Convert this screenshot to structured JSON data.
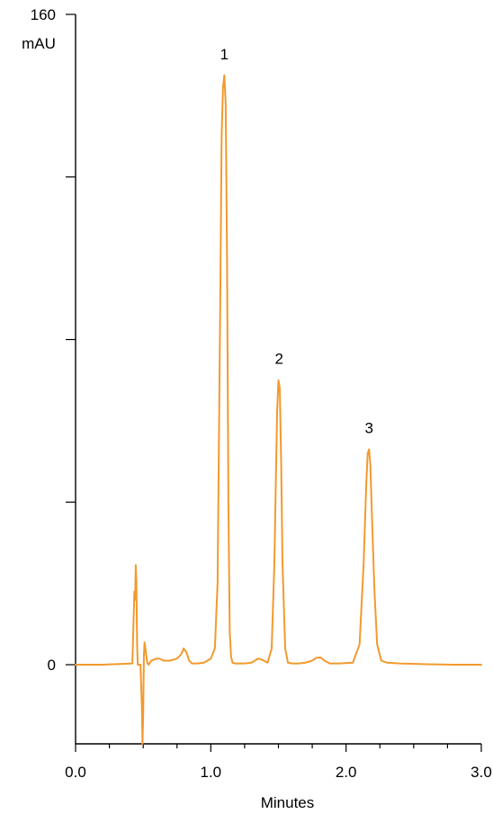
{
  "chart_data": {
    "type": "line",
    "title": "",
    "xlabel": "Minutes",
    "ylabel": "mAU",
    "xlim": [
      0.0,
      3.0
    ],
    "ylim": [
      -19.5,
      160
    ],
    "x_tick_labels": [
      {
        "value": 0.0,
        "label": "0.0"
      },
      {
        "value": 1.0,
        "label": "1.0"
      },
      {
        "value": 2.0,
        "label": "2.0"
      },
      {
        "value": 3.0,
        "label": "3.0"
      }
    ],
    "x_minor_ticks": [
      0.25,
      0.5,
      0.75,
      1.25,
      1.5,
      1.75,
      2.25,
      2.5,
      2.75
    ],
    "y_tick_labels": [
      {
        "value": 160,
        "label": "160"
      },
      {
        "value": 0,
        "label": "0"
      }
    ],
    "y_minor_ticks": [
      40,
      80,
      120
    ],
    "grid": false,
    "color": "#F29A2E",
    "series": [
      {
        "x": [
          0.0,
          0.2,
          0.42,
          0.435,
          0.44,
          0.445,
          0.45,
          0.455,
          0.46,
          0.47,
          0.48,
          0.49,
          0.495,
          0.5,
          0.505,
          0.51,
          0.52,
          0.53,
          0.54,
          0.56,
          0.6,
          0.62,
          0.65,
          0.7,
          0.75,
          0.78,
          0.8,
          0.82,
          0.84,
          0.86,
          0.9,
          0.95,
          1.0,
          1.03,
          1.05,
          1.07,
          1.08,
          1.09,
          1.1,
          1.11,
          1.12,
          1.13,
          1.14,
          1.15,
          1.16,
          1.18,
          1.2,
          1.25,
          1.3,
          1.35,
          1.38,
          1.42,
          1.45,
          1.47,
          1.49,
          1.5,
          1.51,
          1.52,
          1.53,
          1.55,
          1.57,
          1.6,
          1.65,
          1.7,
          1.75,
          1.78,
          1.81,
          1.84,
          1.88,
          1.95,
          2.05,
          2.1,
          2.13,
          2.15,
          2.16,
          2.17,
          2.18,
          2.19,
          2.21,
          2.23,
          2.26,
          2.3,
          2.4,
          2.6,
          2.8,
          3.0
        ],
        "y": [
          0,
          0,
          0.3,
          18,
          16,
          24.5,
          20,
          5,
          0,
          0,
          0,
          -10,
          -19.5,
          -12,
          2,
          5.5,
          3,
          0.5,
          0,
          1,
          1.5,
          1.5,
          1,
          1,
          1.5,
          2.5,
          4,
          3,
          1,
          0.3,
          0.3,
          0.5,
          1.5,
          4,
          20,
          90,
          130,
          142,
          145,
          138,
          100,
          40,
          8,
          2,
          0.5,
          0.3,
          0.3,
          0.3,
          0.5,
          1.5,
          1.2,
          0.5,
          4,
          25,
          62,
          70,
          68,
          50,
          25,
          4,
          0.5,
          0.3,
          0.3,
          0.5,
          1,
          1.7,
          1.8,
          1,
          0.3,
          0.3,
          0.5,
          5,
          25,
          45,
          52,
          53,
          49,
          38,
          18,
          5,
          1,
          0.5,
          0.3,
          0.1,
          0,
          0
        ]
      }
    ],
    "annotations": [
      {
        "text": "1",
        "x": 1.1,
        "y": 145
      },
      {
        "text": "2",
        "x": 1.505,
        "y": 70
      },
      {
        "text": "3",
        "x": 2.17,
        "y": 53
      }
    ]
  }
}
